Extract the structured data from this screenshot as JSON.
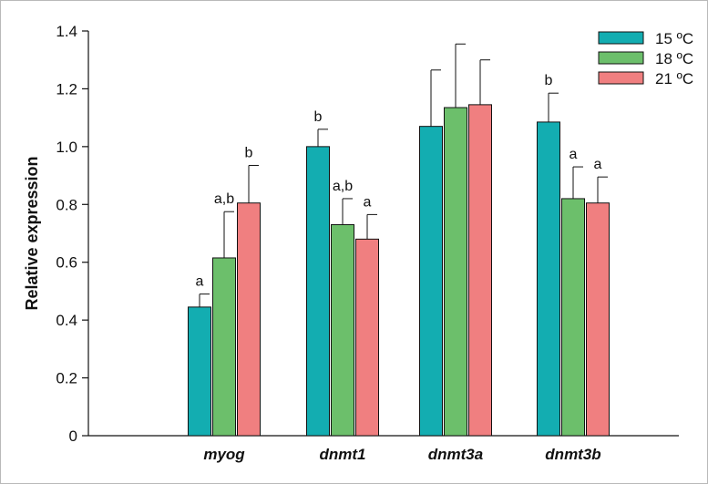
{
  "chart_data": {
    "type": "bar",
    "ylabel": "Relative expression",
    "ylim": [
      0,
      1.4
    ],
    "y_ticks": [
      "0",
      "0.2",
      "0.4",
      "0.6",
      "0.8",
      "1.0",
      "1.2",
      "1.4"
    ],
    "categories": [
      "myog",
      "dnmt1",
      "dnmt3a",
      "dnmt3b"
    ],
    "legend_position": "top-right",
    "series": [
      {
        "name": "15 ºC",
        "color": "#13adb1",
        "values": [
          0.445,
          1.0,
          1.07,
          1.085
        ],
        "errors": [
          0.045,
          0.06,
          0.195,
          0.1
        ],
        "sig": [
          "a",
          "b",
          "",
          "b"
        ]
      },
      {
        "name": "18 ºC",
        "color": "#6cbf6b",
        "values": [
          0.615,
          0.73,
          1.135,
          0.82
        ],
        "errors": [
          0.16,
          0.09,
          0.22,
          0.11
        ],
        "sig": [
          "a,b",
          "a,b",
          "",
          "a"
        ]
      },
      {
        "name": "21 ºC",
        "color": "#f07f80",
        "values": [
          0.805,
          0.68,
          1.145,
          0.805
        ],
        "errors": [
          0.13,
          0.085,
          0.155,
          0.09
        ],
        "sig": [
          "b",
          "a",
          "",
          "a"
        ]
      }
    ]
  }
}
